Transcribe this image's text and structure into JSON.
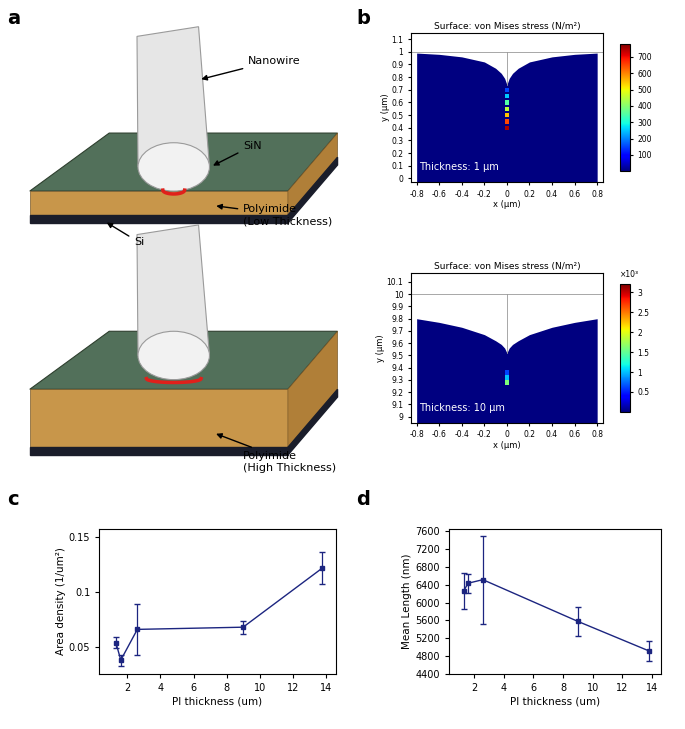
{
  "panel_labels": [
    "a",
    "b",
    "c",
    "d"
  ],
  "diagram": {
    "labels": {
      "nanowire": "Nanowire",
      "sin": "SiN",
      "polyimide_low": "Polyimide\n(Low Thickness)",
      "si": "Si",
      "polyimide_high": "Polyimide\n(High Thickness)"
    }
  },
  "chart_data": [
    {
      "type": "field",
      "title": "Surface: von Mises stress (N/m²)",
      "xlabel": "x (μm)",
      "ylabel": "y (μm)",
      "xlim": [
        -0.85,
        0.85
      ],
      "ylim": [
        -0.03,
        1.15
      ],
      "xticks": [
        -0.8,
        -0.6,
        -0.4,
        -0.2,
        0,
        0.2,
        0.4,
        0.6,
        0.8
      ],
      "yticks": [
        0,
        0.1,
        0.2,
        0.3,
        0.4,
        0.5,
        0.6,
        0.7,
        0.8,
        0.9,
        1,
        1.1
      ],
      "annotation": "Thickness: 1 μm",
      "surface": {
        "x": [
          -0.8,
          -0.6,
          -0.4,
          -0.2,
          -0.1,
          -0.05,
          -0.02,
          0,
          0.02,
          0.05,
          0.1,
          0.2,
          0.4,
          0.6,
          0.8
        ],
        "y": [
          0.99,
          0.98,
          0.96,
          0.92,
          0.87,
          0.83,
          0.79,
          0.74,
          0.79,
          0.83,
          0.87,
          0.92,
          0.96,
          0.98,
          0.99
        ]
      },
      "undeformed_y": 1,
      "peak": {
        "x": 0,
        "y": [
          0.4,
          0.45,
          0.5,
          0.55,
          0.6,
          0.65,
          0.7
        ],
        "values": [
          750,
          650,
          550,
          450,
          350,
          250,
          150
        ]
      },
      "colorbar": {
        "range": [
          0,
          780
        ],
        "ticks": [
          100,
          200,
          300,
          400,
          500,
          600,
          700
        ]
      }
    },
    {
      "type": "field",
      "title": "Surface: von Mises stress (N/m²)",
      "xlabel": "x (μm)",
      "ylabel": "y (μm)",
      "xlim": [
        -0.85,
        0.85
      ],
      "ylim": [
        8.95,
        10.17
      ],
      "xticks": [
        -0.8,
        -0.6,
        -0.4,
        -0.2,
        0,
        0.2,
        0.4,
        0.6,
        0.8
      ],
      "yticks": [
        9,
        9.1,
        9.2,
        9.3,
        9.4,
        9.5,
        9.6,
        9.7,
        9.8,
        9.9,
        10,
        10.1
      ],
      "annotation": "Thickness: 10 μm",
      "surface": {
        "x": [
          -0.8,
          -0.6,
          -0.4,
          -0.2,
          -0.1,
          -0.05,
          -0.02,
          0,
          0.02,
          0.05,
          0.1,
          0.2,
          0.4,
          0.6,
          0.8
        ],
        "y": [
          9.8,
          9.77,
          9.73,
          9.67,
          9.62,
          9.59,
          9.56,
          9.52,
          9.56,
          9.59,
          9.62,
          9.67,
          9.73,
          9.77,
          9.8
        ]
      },
      "undeformed_y": 10,
      "peak": {
        "x": 0,
        "y": [
          9.28,
          9.32,
          9.36
        ],
        "values": [
          1600,
          1000,
          600
        ]
      },
      "colorbar": {
        "range": [
          0,
          3200
        ],
        "multiplier": "×10³",
        "ticks": [
          {
            "value": 500,
            "label": "0.5"
          },
          {
            "value": 1000,
            "label": "1"
          },
          {
            "value": 1500,
            "label": "1.5"
          },
          {
            "value": 2000,
            "label": "2"
          },
          {
            "value": 2500,
            "label": "2.5"
          },
          {
            "value": 3000,
            "label": "3"
          }
        ]
      }
    },
    {
      "type": "line",
      "xlabel": "PI thickness (um)",
      "ylabel": "Area density (1/um²)",
      "x": [
        1.3,
        1.6,
        2.6,
        9.0,
        13.8
      ],
      "values": [
        0.054,
        0.038,
        0.066,
        0.068,
        0.122
      ],
      "errors": [
        0.005,
        0.005,
        0.023,
        0.006,
        0.015
      ],
      "color": "#1c2580",
      "marker": "square",
      "line_style": "solid",
      "xlim": [
        0.3,
        14.6
      ],
      "ylim": [
        0.025,
        0.158
      ],
      "xticks": [
        2,
        4,
        6,
        8,
        10,
        12,
        14
      ],
      "yticks": [
        0.05,
        0.1,
        0.15
      ]
    },
    {
      "type": "line",
      "xlabel": "PI thickness (um)",
      "ylabel": "Mean Length (nm)",
      "x": [
        1.3,
        1.6,
        2.6,
        9.0,
        13.8
      ],
      "values": [
        6250,
        6430,
        6510,
        5580,
        4920
      ],
      "errors": [
        400,
        210,
        980,
        320,
        215
      ],
      "color": "#1c2580",
      "marker": "square",
      "line_style": "solid",
      "xlim": [
        0.3,
        14.6
      ],
      "ylim": [
        4400,
        7650
      ],
      "xticks": [
        2,
        4,
        6,
        8,
        10,
        12,
        14
      ],
      "yticks": [
        4400,
        4800,
        5200,
        5600,
        6000,
        6400,
        6800,
        7200,
        7600
      ]
    }
  ]
}
